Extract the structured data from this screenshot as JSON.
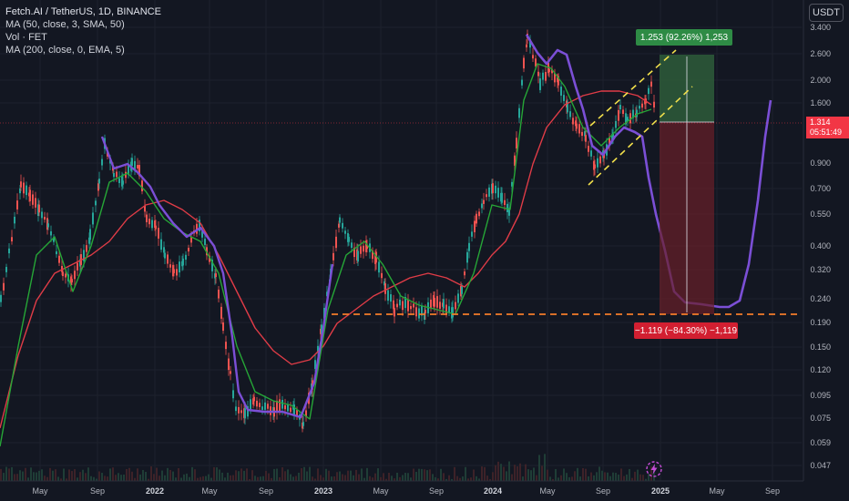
{
  "legend": {
    "symbol": "Fetch.AI / TetherUS, 1D, BINANCE",
    "ma50": "MA (50, close, 3, SMA, 50)",
    "vol": "Vol · FET",
    "ma200": "MA (200, close, 0, EMA, 5)"
  },
  "currency_button": "USDT",
  "price_axis": [
    "3.400",
    "2.600",
    "2.000",
    "1.600",
    "0.900",
    "0.700",
    "0.550",
    "0.400",
    "0.320",
    "0.240",
    "0.190",
    "0.150",
    "0.120",
    "0.095",
    "0.075",
    "0.059",
    "0.047"
  ],
  "time_axis": [
    {
      "label": "May",
      "bold": false
    },
    {
      "label": "Sep",
      "bold": false
    },
    {
      "label": "2022",
      "bold": true
    },
    {
      "label": "May",
      "bold": false
    },
    {
      "label": "Sep",
      "bold": false
    },
    {
      "label": "2023",
      "bold": true
    },
    {
      "label": "May",
      "bold": false
    },
    {
      "label": "Sep",
      "bold": false
    },
    {
      "label": "2024",
      "bold": true
    },
    {
      "label": "May",
      "bold": false
    },
    {
      "label": "Sep",
      "bold": false
    },
    {
      "label": "2025",
      "bold": true
    },
    {
      "label": "May",
      "bold": false
    },
    {
      "label": "Sep",
      "bold": false
    }
  ],
  "current_price": {
    "price": "1.314",
    "countdown": "05:51:49"
  },
  "position_tool": {
    "profit_label": "1.253 (92.26%) 1,253",
    "loss_label": "−1.119 (−84.30%) −1,119"
  },
  "colors": {
    "background": "#131722",
    "ma50": "#26a637",
    "ma200": "#e03c47",
    "projection": "#7b4fd6",
    "support_line": "#f57c2a",
    "channel": "#f2e04b",
    "profit_zone": "#2e5c3a",
    "loss_zone": "#6a1f28"
  },
  "icons": {
    "flash": "lightning-icon"
  }
}
